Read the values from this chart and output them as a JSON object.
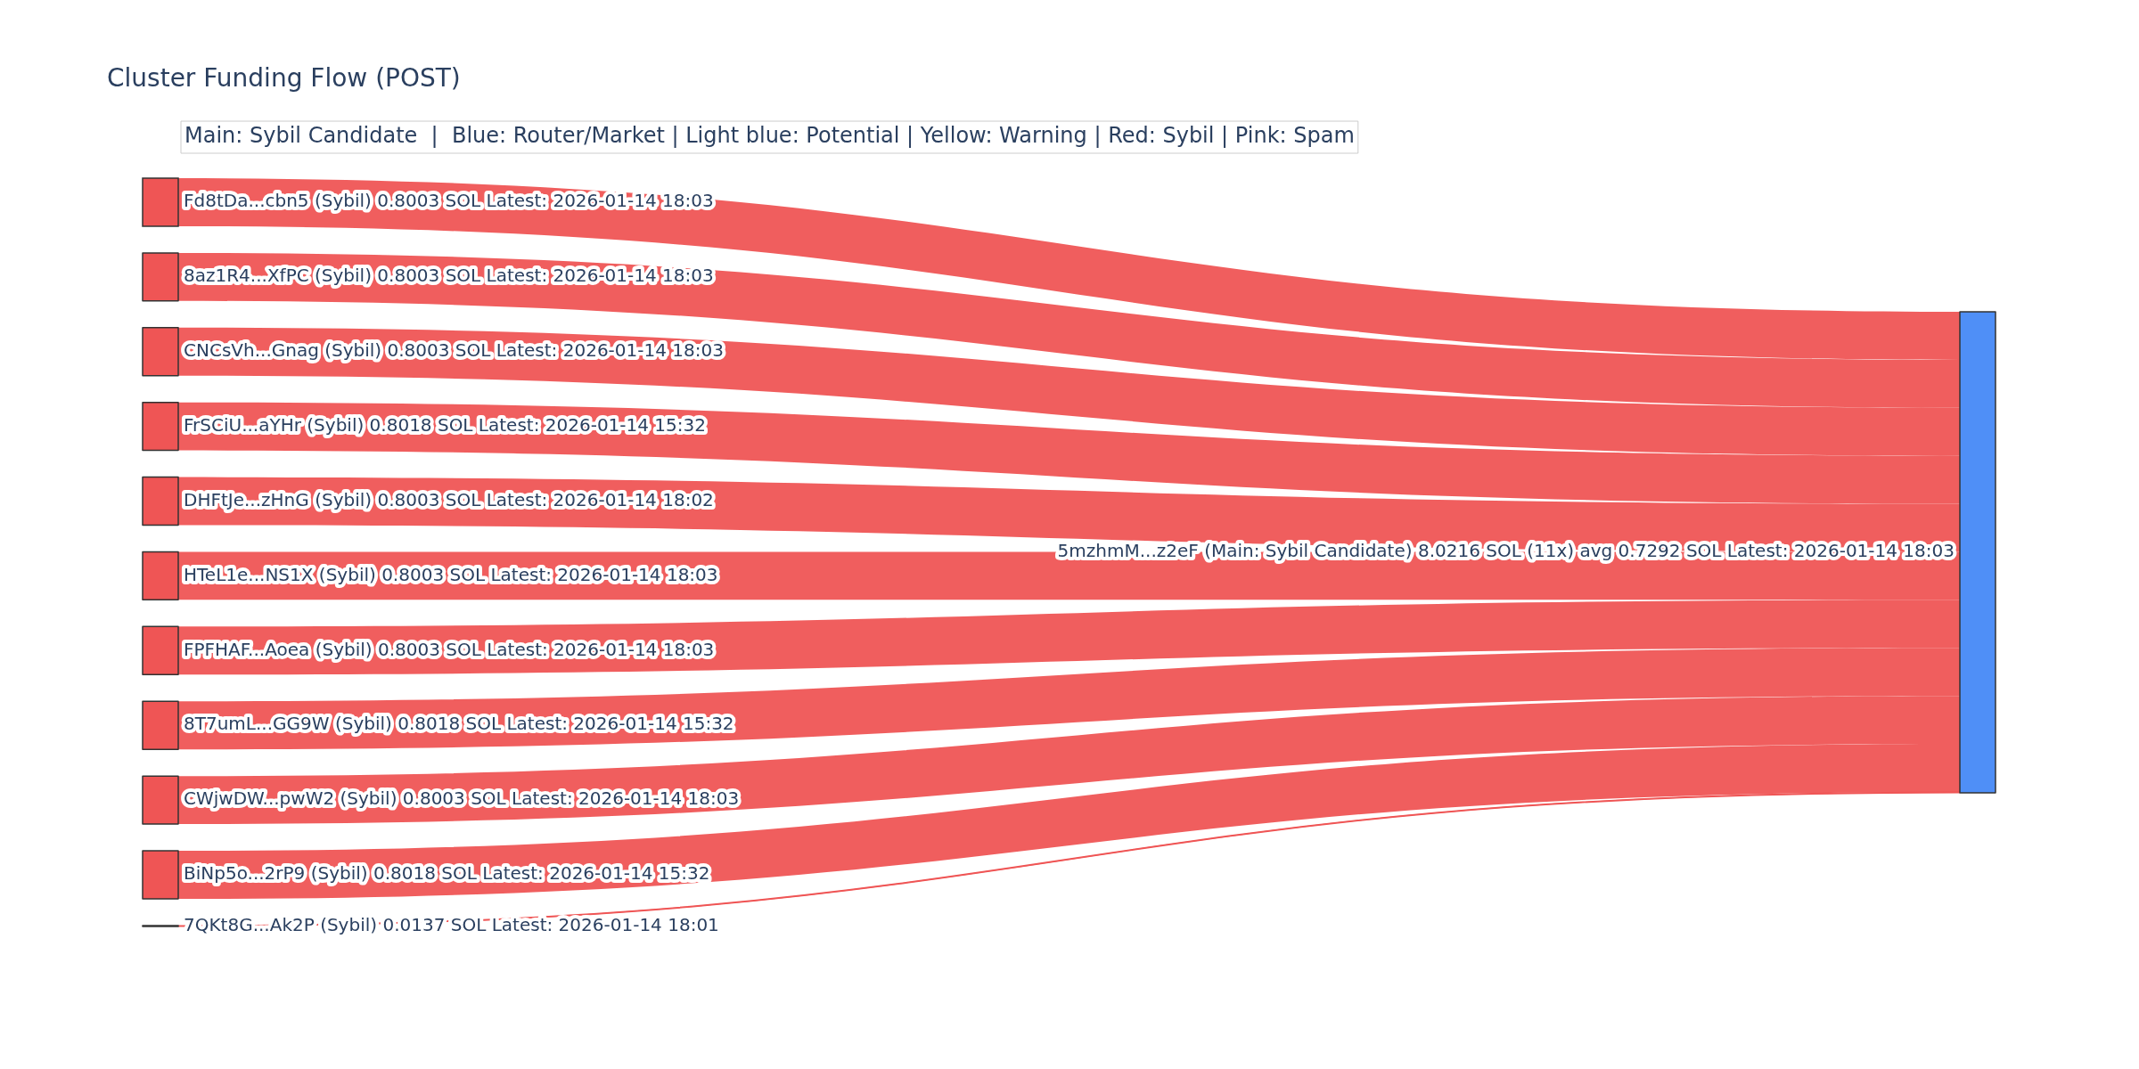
{
  "chart_data": {
    "type": "other",
    "title": "Cluster Funding Flow (POST)",
    "categories": [
      "Fd8tDa...cbn5 (Sybil)",
      "8az1R4...XfPC (Sybil)",
      "CNCsVh...Gnag (Sybil)",
      "FrSCiU...aYHr (Sybil)",
      "DHFtJe...zHnG (Sybil)",
      "HTeL1e...NS1X (Sybil)",
      "FPFHAF...Aoea (Sybil)",
      "8T7umL...GG9W (Sybil)",
      "CWjwDW...pwW2 (Sybil)",
      "BiNp5o...2rP9 (Sybil)",
      "7QKt8G...Ak2P (Sybil)"
    ],
    "values": [
      0.8003,
      0.8003,
      0.8003,
      0.8018,
      0.8003,
      0.8003,
      0.8003,
      0.8018,
      0.8003,
      0.8018,
      0.0137
    ],
    "value_labels": [
      "0.8003 SOL Latest: 2026-01-14 18:03",
      "0.8003 SOL Latest: 2026-01-14 18:03",
      "0.8003 SOL Latest: 2026-01-14 18:03",
      "0.8018 SOL Latest: 2026-01-14 15:32",
      "0.8003 SOL Latest: 2026-01-14 18:02",
      "0.8003 SOL Latest: 2026-01-14 18:03",
      "0.8003 SOL Latest: 2026-01-14 18:03",
      "0.8018 SOL Latest: 2026-01-14 15:32",
      "0.8003 SOL Latest: 2026-01-14 18:03",
      "0.8018 SOL Latest: 2026-01-14 15:32",
      "0.0137 SOL Latest: 2026-01-14 18:01"
    ],
    "colors": [
      "#ef5555",
      "#ef5555",
      "#ef5555",
      "#ef5555",
      "#ef5555",
      "#ef5555",
      "#ef5555",
      "#ef5555",
      "#ef5555",
      "#ef5555",
      "#ef5555"
    ],
    "color": "#4f8ff7",
    "annotations": [
      "5mzhmM...z2eF (Main: Sybil Candidate) 8.0216 SOL (11x) avg 0.7292 SOL Latest: 2026-01-14 18:03",
      "Main: Sybil Candidate  |  Blue: Router/Market | Light blue: Potential | Yellow: Warning | Red: Sybil | Pink: Spam"
    ]
  }
}
